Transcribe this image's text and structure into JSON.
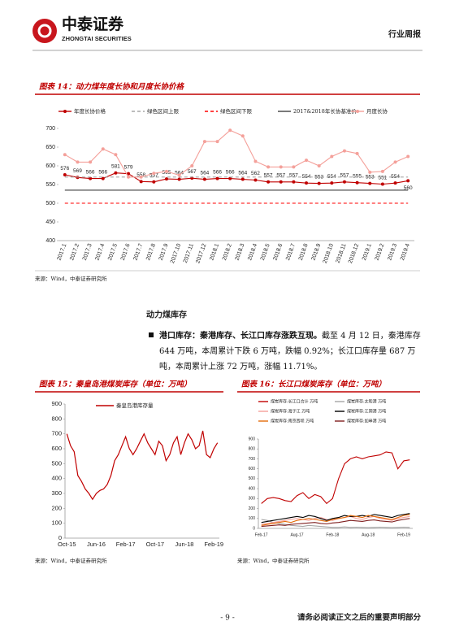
{
  "header": {
    "company": "中泰证券",
    "company_en": "ZHONGTAI SECURITIES",
    "report_type": "行业周报"
  },
  "chart_data": [
    {
      "type": "line",
      "title": "图表 14：动力煤年度长协和月度长协价格",
      "source": "来源：Wind，中泰证券研究所",
      "categories": [
        "2017.1",
        "2017.2",
        "2017.3",
        "2017.4",
        "2017.5",
        "2017.6",
        "2017.7",
        "2017.8",
        "2017.9",
        "2017.10",
        "2017.11",
        "2017.12",
        "2018.1",
        "2018.2",
        "2018.3",
        "2018.4",
        "2018.5",
        "2018.6",
        "2018.7",
        "2018.8",
        "2018.9",
        "2018.10",
        "2018.11",
        "2018.12",
        "2019.1",
        "2019.2",
        "2019.3",
        "2019.4"
      ],
      "series": [
        {
          "name": "年度长协价格",
          "color": "#c00000",
          "marker": true,
          "data_labels": true,
          "values": [
            576,
            569,
            566,
            566,
            581,
            579,
            558,
            557,
            565,
            564,
            567,
            564,
            566,
            566,
            564,
            562,
            557,
            557,
            557,
            554,
            553,
            554,
            557,
            555,
            553,
            551,
            554,
            560
          ]
        },
        {
          "name": "绿色区间上限",
          "color": "#a6a6a6",
          "dash": true,
          "values": [
            570,
            570,
            570,
            570,
            570,
            570,
            570,
            570,
            570,
            570,
            570,
            570,
            570,
            570,
            570,
            570,
            570,
            570,
            570,
            570,
            570,
            570,
            570,
            570,
            570,
            570,
            570,
            570
          ]
        },
        {
          "name": "绿色区间下限",
          "color": "#ff0000",
          "dash": true,
          "values": [
            500,
            500,
            500,
            500,
            500,
            500,
            500,
            500,
            500,
            500,
            500,
            500,
            500,
            500,
            500,
            500,
            500,
            500,
            500,
            500,
            500,
            500,
            500,
            500,
            500,
            500,
            500,
            500
          ]
        },
        {
          "name": "2017&2018年长协基准价",
          "color": "#404040",
          "values": [
            535,
            535,
            535,
            535,
            535,
            535,
            535,
            535,
            535,
            535,
            535,
            535,
            535,
            535,
            535,
            535,
            535,
            535,
            535,
            535,
            535,
            535,
            535,
            535,
            535,
            535,
            535,
            535
          ]
        },
        {
          "name": "月度长协",
          "color": "#f4a09a",
          "marker": true,
          "values": [
            630,
            610,
            610,
            645,
            630,
            570,
            570,
            580,
            585,
            575,
            600,
            665,
            665,
            695,
            680,
            612,
            597,
            597,
            597,
            615,
            600,
            625,
            640,
            633,
            583,
            585,
            610,
            625
          ]
        }
      ],
      "ylim": [
        400,
        700
      ],
      "yticks": [
        400,
        450,
        500,
        550,
        600,
        650,
        700
      ],
      "grid": false,
      "legend": "top"
    },
    {
      "type": "line",
      "title": "图表 15：秦皇岛港煤炭库存（单位：万吨）",
      "source": "来源：Wind，中泰证券研究所",
      "categories": [
        "Oct-15",
        null,
        null,
        null,
        null,
        null,
        null,
        null,
        "Jun-16",
        null,
        null,
        null,
        null,
        null,
        null,
        null,
        "Feb-17",
        null,
        null,
        null,
        null,
        null,
        null,
        null,
        "Oct-17",
        null,
        null,
        null,
        null,
        null,
        null,
        null,
        "Jun-18",
        null,
        null,
        null,
        null,
        null,
        null,
        null,
        "Feb-19",
        null
      ],
      "series": [
        {
          "name": "秦皇岛港库存量",
          "color": "#c00000",
          "values": [
            700,
            620,
            580,
            420,
            380,
            330,
            300,
            260,
            300,
            320,
            330,
            360,
            420,
            520,
            560,
            620,
            680,
            600,
            560,
            600,
            650,
            700,
            640,
            600,
            560,
            650,
            620,
            520,
            560,
            640,
            680,
            560,
            640,
            700,
            660,
            600,
            620,
            720,
            560,
            540,
            600,
            640
          ]
        }
      ],
      "ylim": [
        0,
        900
      ],
      "yticks": [
        0,
        100,
        200,
        300,
        400,
        500,
        600,
        700,
        800,
        900
      ],
      "grid": false,
      "legend": "upper-left"
    },
    {
      "type": "line",
      "title": "图表 16：长江口煤炭库存（单位：万吨）",
      "source": "来源：Wind，中泰证券研究所",
      "categories": [
        "Feb-17",
        null,
        null,
        null,
        null,
        null,
        "Aug-17",
        null,
        null,
        null,
        null,
        null,
        "Feb-18",
        null,
        null,
        null,
        null,
        null,
        "Aug-18",
        null,
        null,
        null,
        null,
        null,
        "Feb-19",
        null
      ],
      "series": [
        {
          "name": "煤炭库存:长江口合计 万吨",
          "color": "#c00000",
          "values": [
            250,
            300,
            310,
            300,
            280,
            270,
            330,
            360,
            300,
            340,
            320,
            250,
            300,
            500,
            650,
            700,
            720,
            700,
            720,
            730,
            740,
            770,
            760,
            600,
            680,
            690
          ]
        },
        {
          "name": "煤炭库存:太和港 万吨",
          "color": "#a6a6a6",
          "values": [
            90,
            80,
            60,
            50,
            40,
            30,
            25,
            20,
            30,
            25,
            20,
            15,
            10,
            10,
            15,
            10,
            12,
            10,
            8,
            10,
            12,
            10,
            8,
            10,
            12,
            10
          ]
        },
        {
          "name": "煤炭库存:海子江 万吨",
          "color": "#f4a09a",
          "values": [
            40,
            50,
            60,
            70,
            80,
            90,
            100,
            90,
            80,
            100,
            110,
            90,
            80,
            100,
            110,
            120,
            100,
            90,
            110,
            120,
            100,
            90,
            80,
            100,
            110,
            120
          ]
        },
        {
          "name": "煤炭库存:江阴港 万吨",
          "color": "#000000",
          "values": [
            60,
            70,
            80,
            90,
            100,
            110,
            120,
            110,
            130,
            120,
            100,
            80,
            100,
            110,
            130,
            120,
            120,
            130,
            120,
            140,
            130,
            120,
            110,
            130,
            140,
            150
          ]
        },
        {
          "name": "煤炭库存:南京西坝 万吨",
          "color": "#e46c0a",
          "values": [
            30,
            40,
            50,
            60,
            70,
            60,
            80,
            90,
            100,
            90,
            80,
            70,
            90,
            100,
            110,
            130,
            120,
            110,
            130,
            120,
            110,
            100,
            90,
            110,
            130,
            140
          ]
        },
        {
          "name": "煤炭库存:如皋港 万吨",
          "color": "#7f1f1f",
          "values": [
            20,
            25,
            30,
            35,
            30,
            40,
            45,
            50,
            55,
            60,
            50,
            45,
            55,
            60,
            70,
            80,
            75,
            70,
            80,
            85,
            75,
            70,
            65,
            80,
            90,
            100
          ]
        }
      ],
      "ylim": [
        0,
        900
      ],
      "yticks": [
        0,
        100,
        200,
        300,
        400,
        500,
        600,
        700,
        800,
        900
      ],
      "grid": false,
      "legend": "top-columns"
    }
  ],
  "section_title": "动力煤库存",
  "paragraph": {
    "lead": "港口库存：秦港库存、长江口库存涨跌互现。",
    "body": "截至 4 月 12 日，秦港库存 644 万吨，本周累计下跌 6 万吨，跌幅 0.92%；长江口库存量 687 万吨，本周累计上涨 72 万吨，涨幅 11.71%。"
  },
  "footer": {
    "page": "- 9 -",
    "disclaimer": "请务必阅读正文之后的重要声明部分"
  }
}
